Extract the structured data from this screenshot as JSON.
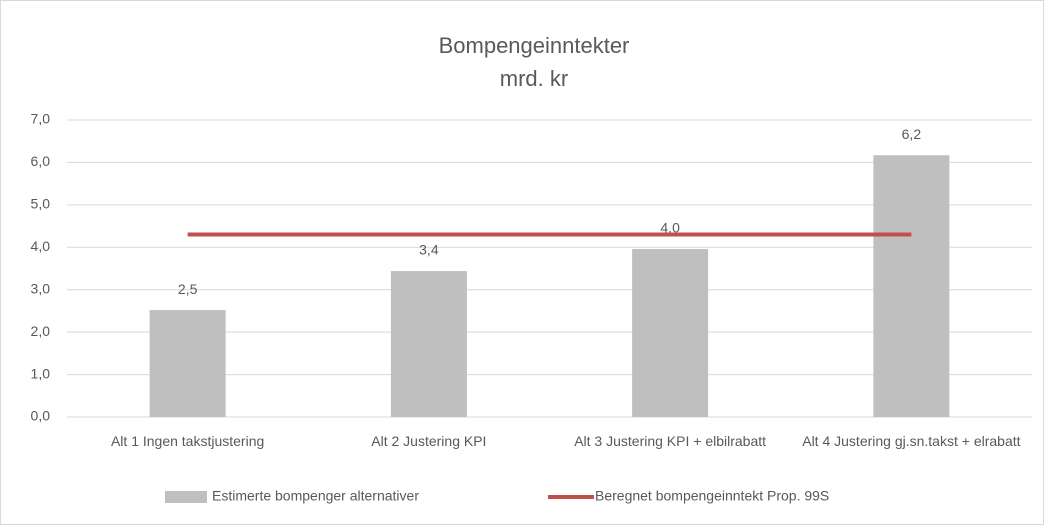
{
  "chart_data": {
    "type": "bar",
    "title": [
      "Bompengeinntekter",
      "mrd. kr"
    ],
    "categories": [
      "Alt 1 Ingen takstjustering",
      "Alt 2 Justering KPI",
      "Alt 3 Justering KPI + elbilrabatt",
      "Alt 4 Justering gj.sn.takst + elrabatt"
    ],
    "series": [
      {
        "name": "Estimerte bompenger alternativer",
        "color": "#bfbfbf",
        "values": [
          2.52,
          3.44,
          3.96,
          6.17
        ],
        "value_labels": [
          "2,5",
          "3,4",
          "4,0",
          "6,2"
        ]
      },
      {
        "name": "Beregnet bompengeinntekt Prop. 99S",
        "type": "line",
        "color": "#c0504d",
        "values": [
          4.3,
          4.3,
          4.3,
          4.3
        ]
      }
    ],
    "ylim": [
      0,
      7
    ],
    "yticks": [
      {
        "value": 0,
        "label": "0,0"
      },
      {
        "value": 1,
        "label": "1,0"
      },
      {
        "value": 2,
        "label": "2,0"
      },
      {
        "value": 3,
        "label": "3,0"
      },
      {
        "value": 4,
        "label": "4,0"
      },
      {
        "value": 5,
        "label": "5,0"
      },
      {
        "value": 6,
        "label": "6,0"
      },
      {
        "value": 7,
        "label": "7,0"
      }
    ],
    "grid": true,
    "legend": "bottom"
  }
}
